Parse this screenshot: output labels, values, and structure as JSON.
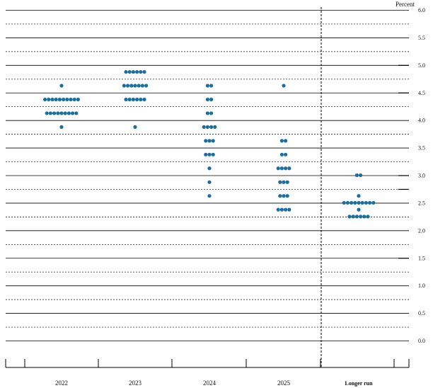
{
  "chart_data": {
    "type": "scatter",
    "ylabel": "Percent",
    "ylim": [
      0.0,
      6.0
    ],
    "ytick_step": 0.25,
    "ytick_labels": [
      "0.0",
      "0.5",
      "1.0",
      "1.5",
      "2.0",
      "2.5",
      "3.0",
      "3.5",
      "4.0",
      "4.5",
      "5.0",
      "5.5",
      "6.0"
    ],
    "categories": [
      "2022",
      "2023",
      "2024",
      "2025",
      "Longer run"
    ],
    "grid": true,
    "dot_color": "#1a6fa0",
    "points": [
      {
        "cat": "2022",
        "y": 3.875,
        "count": 1
      },
      {
        "cat": "2022",
        "y": 4.125,
        "count": 9
      },
      {
        "cat": "2022",
        "y": 4.375,
        "count": 10
      },
      {
        "cat": "2022",
        "y": 4.625,
        "count": 1
      },
      {
        "cat": "2023",
        "y": 3.875,
        "count": 1
      },
      {
        "cat": "2023",
        "y": 4.375,
        "count": 6
      },
      {
        "cat": "2023",
        "y": 4.625,
        "count": 7
      },
      {
        "cat": "2023",
        "y": 4.875,
        "count": 6
      },
      {
        "cat": "2024",
        "y": 2.625,
        "count": 1
      },
      {
        "cat": "2024",
        "y": 2.875,
        "count": 1
      },
      {
        "cat": "2024",
        "y": 3.125,
        "count": 1
      },
      {
        "cat": "2024",
        "y": 3.375,
        "count": 3
      },
      {
        "cat": "2024",
        "y": 3.625,
        "count": 3
      },
      {
        "cat": "2024",
        "y": 3.875,
        "count": 4
      },
      {
        "cat": "2024",
        "y": 4.125,
        "count": 2
      },
      {
        "cat": "2024",
        "y": 4.375,
        "count": 2
      },
      {
        "cat": "2024",
        "y": 4.625,
        "count": 2
      },
      {
        "cat": "2025",
        "y": 2.375,
        "count": 4
      },
      {
        "cat": "2025",
        "y": 2.625,
        "count": 3
      },
      {
        "cat": "2025",
        "y": 2.875,
        "count": 3
      },
      {
        "cat": "2025",
        "y": 3.125,
        "count": 4
      },
      {
        "cat": "2025",
        "y": 3.375,
        "count": 2
      },
      {
        "cat": "2025",
        "y": 3.625,
        "count": 2
      },
      {
        "cat": "2025",
        "y": 4.625,
        "count": 1
      },
      {
        "cat": "Longer run",
        "y": 2.25,
        "count": 6
      },
      {
        "cat": "Longer run",
        "y": 2.375,
        "count": 1
      },
      {
        "cat": "Longer run",
        "y": 2.5,
        "count": 9
      },
      {
        "cat": "Longer run",
        "y": 2.625,
        "count": 1
      },
      {
        "cat": "Longer run",
        "y": 3.0,
        "count": 2
      }
    ]
  }
}
